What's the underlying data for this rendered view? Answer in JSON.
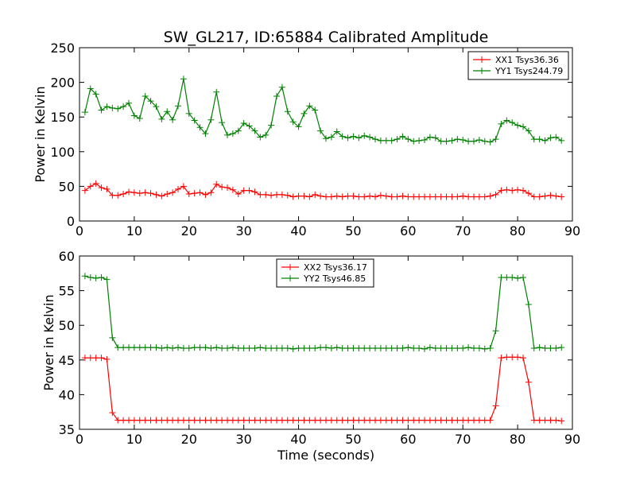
{
  "title": "SW_GL217, ID:65884 Calibrated Amplitude",
  "chart_data": [
    {
      "type": "line",
      "ylabel": "Power in Kelvin",
      "xlabel": "",
      "xlim": [
        0,
        90
      ],
      "ylim": [
        0,
        250
      ],
      "xticks": [
        "0",
        "10",
        "20",
        "30",
        "40",
        "50",
        "60",
        "70",
        "80",
        "90"
      ],
      "yticks": [
        "0",
        "50",
        "100",
        "150",
        "200",
        "250"
      ],
      "grid": false,
      "legend_position": "upper right",
      "marker": "+",
      "series": [
        {
          "name": "XX1 Tsys36.36",
          "color": "#ff0000",
          "x": [
            1,
            2,
            3,
            4,
            5,
            6,
            7,
            8,
            9,
            10,
            11,
            12,
            13,
            14,
            15,
            16,
            17,
            18,
            19,
            20,
            21,
            22,
            23,
            24,
            25,
            26,
            27,
            28,
            29,
            30,
            31,
            32,
            33,
            34,
            35,
            36,
            37,
            38,
            39,
            40,
            41,
            42,
            43,
            44,
            45,
            46,
            47,
            48,
            49,
            50,
            51,
            52,
            53,
            54,
            55,
            56,
            57,
            58,
            59,
            60,
            61,
            62,
            63,
            64,
            65,
            66,
            67,
            68,
            69,
            70,
            71,
            72,
            73,
            74,
            75,
            76,
            77,
            78,
            79,
            80,
            81,
            82,
            83,
            84,
            85,
            86,
            87,
            88
          ],
          "y": [
            44,
            50,
            54,
            48,
            46,
            37,
            37,
            39,
            42,
            41,
            40,
            41,
            40,
            38,
            36,
            39,
            41,
            46,
            50,
            39,
            40,
            41,
            38,
            41,
            53,
            49,
            48,
            45,
            39,
            44,
            44,
            42,
            38,
            38,
            37,
            38,
            38,
            37,
            35,
            36,
            36,
            35,
            38,
            36,
            35,
            35,
            36,
            35,
            36,
            36,
            35,
            35,
            36,
            35,
            37,
            36,
            35,
            35,
            36,
            35,
            35,
            35,
            35,
            35,
            35,
            35,
            35,
            35,
            35,
            36,
            35,
            35,
            35,
            35,
            36,
            38,
            44,
            45,
            44,
            45,
            44,
            40,
            35,
            35,
            36,
            37,
            36,
            35
          ]
        },
        {
          "name": "YY1 Tsys244.79",
          "color": "#008000",
          "x": [
            1,
            2,
            3,
            4,
            5,
            6,
            7,
            8,
            9,
            10,
            11,
            12,
            13,
            14,
            15,
            16,
            17,
            18,
            19,
            20,
            21,
            22,
            23,
            24,
            25,
            26,
            27,
            28,
            29,
            30,
            31,
            32,
            33,
            34,
            35,
            36,
            37,
            38,
            39,
            40,
            41,
            42,
            43,
            44,
            45,
            46,
            47,
            48,
            49,
            50,
            51,
            52,
            53,
            54,
            55,
            56,
            57,
            58,
            59,
            60,
            61,
            62,
            63,
            64,
            65,
            66,
            67,
            68,
            69,
            70,
            71,
            72,
            73,
            74,
            75,
            76,
            77,
            78,
            79,
            80,
            81,
            82,
            83,
            84,
            85,
            86,
            87,
            88
          ],
          "y": [
            157,
            191,
            183,
            160,
            165,
            163,
            162,
            165,
            170,
            152,
            148,
            180,
            173,
            165,
            147,
            158,
            146,
            166,
            205,
            155,
            145,
            135,
            126,
            146,
            186,
            142,
            124,
            126,
            130,
            141,
            137,
            130,
            121,
            124,
            138,
            180,
            193,
            158,
            143,
            136,
            155,
            166,
            160,
            130,
            119,
            121,
            129,
            122,
            120,
            122,
            120,
            123,
            121,
            118,
            116,
            116,
            116,
            118,
            122,
            118,
            115,
            116,
            117,
            121,
            120,
            115,
            115,
            116,
            118,
            117,
            115,
            115,
            117,
            115,
            114,
            118,
            140,
            145,
            142,
            138,
            136,
            130,
            118,
            118,
            116,
            120,
            121,
            116
          ]
        }
      ]
    },
    {
      "type": "line",
      "ylabel": "Power in Kelvin",
      "xlabel": "Time (seconds)",
      "xlim": [
        0,
        90
      ],
      "ylim": [
        35,
        60
      ],
      "xticks": [
        "0",
        "10",
        "20",
        "30",
        "40",
        "50",
        "60",
        "70",
        "80",
        "90"
      ],
      "yticks": [
        "35",
        "40",
        "45",
        "50",
        "55",
        "60"
      ],
      "grid": false,
      "legend_position": "upper center",
      "marker": "+",
      "series": [
        {
          "name": "XX2 Tsys36.17",
          "color": "#ff0000",
          "x": [
            1,
            2,
            3,
            4,
            5,
            6,
            7,
            8,
            9,
            10,
            11,
            12,
            13,
            14,
            15,
            16,
            17,
            18,
            19,
            20,
            21,
            22,
            23,
            24,
            25,
            26,
            27,
            28,
            29,
            30,
            31,
            32,
            33,
            34,
            35,
            36,
            37,
            38,
            39,
            40,
            41,
            42,
            43,
            44,
            45,
            46,
            47,
            48,
            49,
            50,
            51,
            52,
            53,
            54,
            55,
            56,
            57,
            58,
            59,
            60,
            61,
            62,
            63,
            64,
            65,
            66,
            67,
            68,
            69,
            70,
            71,
            72,
            73,
            74,
            75,
            76,
            77,
            78,
            79,
            80,
            81,
            82,
            83,
            84,
            85,
            86,
            87,
            88
          ],
          "y": [
            45.3,
            45.3,
            45.3,
            45.3,
            45.1,
            37.4,
            36.3,
            36.3,
            36.3,
            36.3,
            36.3,
            36.3,
            36.3,
            36.3,
            36.3,
            36.3,
            36.3,
            36.3,
            36.3,
            36.3,
            36.3,
            36.3,
            36.3,
            36.3,
            36.3,
            36.3,
            36.3,
            36.3,
            36.3,
            36.3,
            36.3,
            36.3,
            36.3,
            36.3,
            36.3,
            36.3,
            36.3,
            36.3,
            36.3,
            36.3,
            36.3,
            36.3,
            36.3,
            36.3,
            36.3,
            36.3,
            36.3,
            36.3,
            36.3,
            36.3,
            36.3,
            36.3,
            36.3,
            36.3,
            36.3,
            36.3,
            36.3,
            36.3,
            36.3,
            36.3,
            36.3,
            36.3,
            36.3,
            36.3,
            36.3,
            36.3,
            36.3,
            36.3,
            36.3,
            36.3,
            36.3,
            36.3,
            36.3,
            36.3,
            36.3,
            38.4,
            45.3,
            45.4,
            45.4,
            45.4,
            45.3,
            41.8,
            36.3,
            36.3,
            36.3,
            36.3,
            36.3,
            36.2
          ]
        },
        {
          "name": "YY2 Tsys46.85",
          "color": "#008000",
          "x": [
            1,
            2,
            3,
            4,
            5,
            6,
            7,
            8,
            9,
            10,
            11,
            12,
            13,
            14,
            15,
            16,
            17,
            18,
            19,
            20,
            21,
            22,
            23,
            24,
            25,
            26,
            27,
            28,
            29,
            30,
            31,
            32,
            33,
            34,
            35,
            36,
            37,
            38,
            39,
            40,
            41,
            42,
            43,
            44,
            45,
            46,
            47,
            48,
            49,
            50,
            51,
            52,
            53,
            54,
            55,
            56,
            57,
            58,
            59,
            60,
            61,
            62,
            63,
            64,
            65,
            66,
            67,
            68,
            69,
            70,
            71,
            72,
            73,
            74,
            75,
            76,
            77,
            78,
            79,
            80,
            81,
            82,
            83,
            84,
            85,
            86,
            87,
            88
          ],
          "y": [
            57.1,
            56.9,
            56.8,
            56.9,
            56.6,
            48.2,
            46.8,
            46.8,
            46.8,
            46.8,
            46.8,
            46.8,
            46.8,
            46.8,
            46.7,
            46.8,
            46.7,
            46.8,
            46.7,
            46.7,
            46.8,
            46.8,
            46.8,
            46.7,
            46.8,
            46.7,
            46.7,
            46.8,
            46.7,
            46.7,
            46.7,
            46.7,
            46.8,
            46.7,
            46.7,
            46.7,
            46.7,
            46.7,
            46.6,
            46.7,
            46.7,
            46.7,
            46.7,
            46.8,
            46.8,
            46.7,
            46.8,
            46.7,
            46.7,
            46.7,
            46.7,
            46.7,
            46.7,
            46.7,
            46.7,
            46.7,
            46.7,
            46.7,
            46.7,
            46.8,
            46.7,
            46.7,
            46.6,
            46.8,
            46.7,
            46.7,
            46.7,
            46.7,
            46.7,
            46.7,
            46.8,
            46.7,
            46.7,
            46.6,
            46.7,
            49.2,
            56.9,
            56.9,
            56.9,
            56.8,
            56.9,
            53.0,
            46.7,
            46.8,
            46.7,
            46.7,
            46.7,
            46.8
          ]
        }
      ]
    }
  ]
}
